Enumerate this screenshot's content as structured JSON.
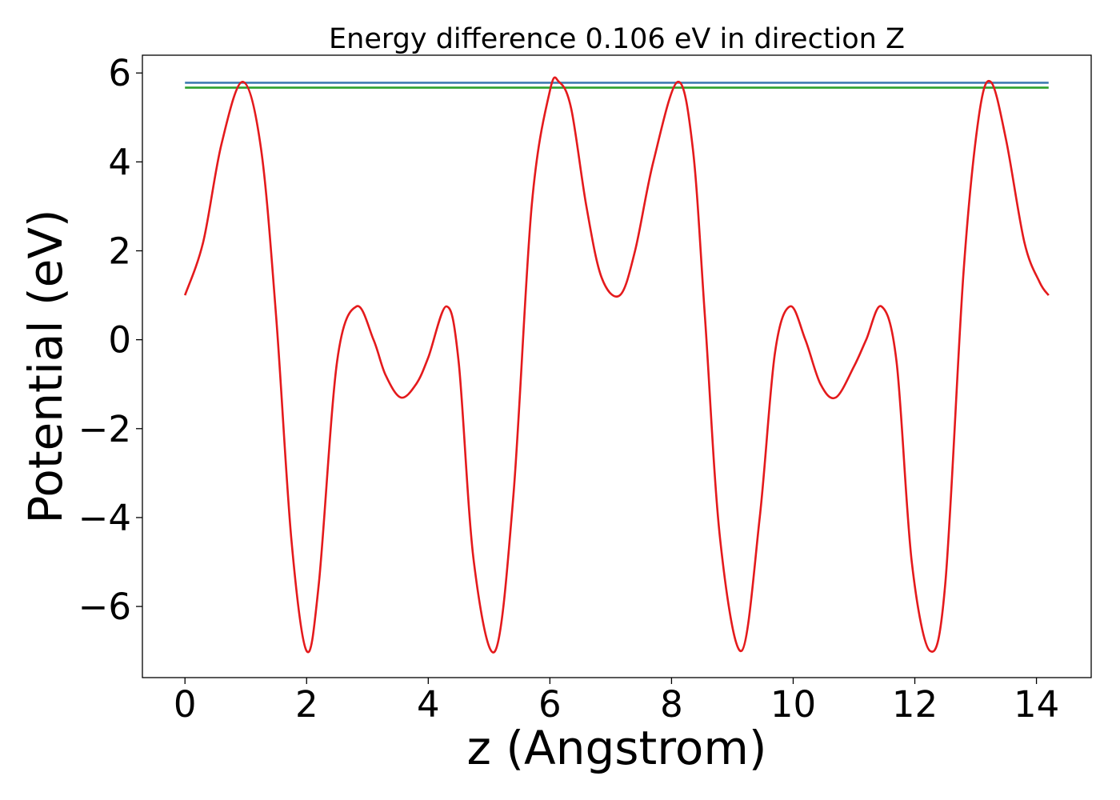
{
  "chart_data": {
    "type": "line",
    "title": "Energy difference 0.106 eV in direction Z",
    "xlabel": "z (Angstrom)",
    "ylabel": "Potential (eV)",
    "xlim": [
      -0.7,
      14.9
    ],
    "ylim": [
      -7.6,
      6.4
    ],
    "grid": false,
    "x_ticks": [
      0,
      2,
      4,
      6,
      8,
      10,
      12,
      14
    ],
    "x_tick_labels": [
      "0",
      "2",
      "4",
      "6",
      "8",
      "10",
      "12",
      "14"
    ],
    "y_ticks": [
      -6,
      -4,
      -2,
      0,
      2,
      4,
      6
    ],
    "y_tick_labels": [
      "−6",
      "−4",
      "−2",
      "0",
      "2",
      "4",
      "6"
    ],
    "series": [
      {
        "color": "#e41a1c",
        "x": [
          0.0,
          0.3,
          0.6,
          0.95,
          1.25,
          1.5,
          1.75,
          2.0,
          2.2,
          2.5,
          2.82,
          3.1,
          3.3,
          3.55,
          3.8,
          4.0,
          4.3,
          4.5,
          4.75,
          5.1,
          5.4,
          5.7,
          6.0,
          6.15,
          6.35,
          6.6,
          6.85,
          7.15,
          7.4,
          7.7,
          8.1,
          8.35,
          8.55,
          8.8,
          9.15,
          9.45,
          9.7,
          9.95,
          10.2,
          10.45,
          10.7,
          11.0,
          11.2,
          11.45,
          11.7,
          11.95,
          12.25,
          12.5,
          12.8,
          13.05,
          13.25,
          13.5,
          13.8,
          14.05,
          14.2
        ],
        "y": [
          1.0,
          2.2,
          4.4,
          5.8,
          4.3,
          0.5,
          -4.5,
          -7.0,
          -5.5,
          -0.5,
          0.75,
          0.0,
          -0.8,
          -1.3,
          -1.0,
          -0.4,
          0.75,
          -0.5,
          -5.0,
          -7.0,
          -3.5,
          3.0,
          5.6,
          5.8,
          5.2,
          3.0,
          1.4,
          1.0,
          2.0,
          4.0,
          5.8,
          4.3,
          0.5,
          -4.5,
          -7.0,
          -4.0,
          -0.3,
          0.75,
          0.0,
          -1.0,
          -1.3,
          -0.6,
          0.0,
          0.75,
          -0.5,
          -5.0,
          -7.0,
          -5.5,
          1.5,
          5.0,
          5.8,
          4.5,
          2.2,
          1.3,
          1.0
        ]
      },
      {
        "color": "#3f7bb0",
        "x": [
          0.0,
          14.2
        ],
        "y": [
          5.78,
          5.78
        ]
      },
      {
        "color": "#2ca02c",
        "x": [
          0.0,
          14.2
        ],
        "y": [
          5.67,
          5.67
        ]
      }
    ]
  }
}
